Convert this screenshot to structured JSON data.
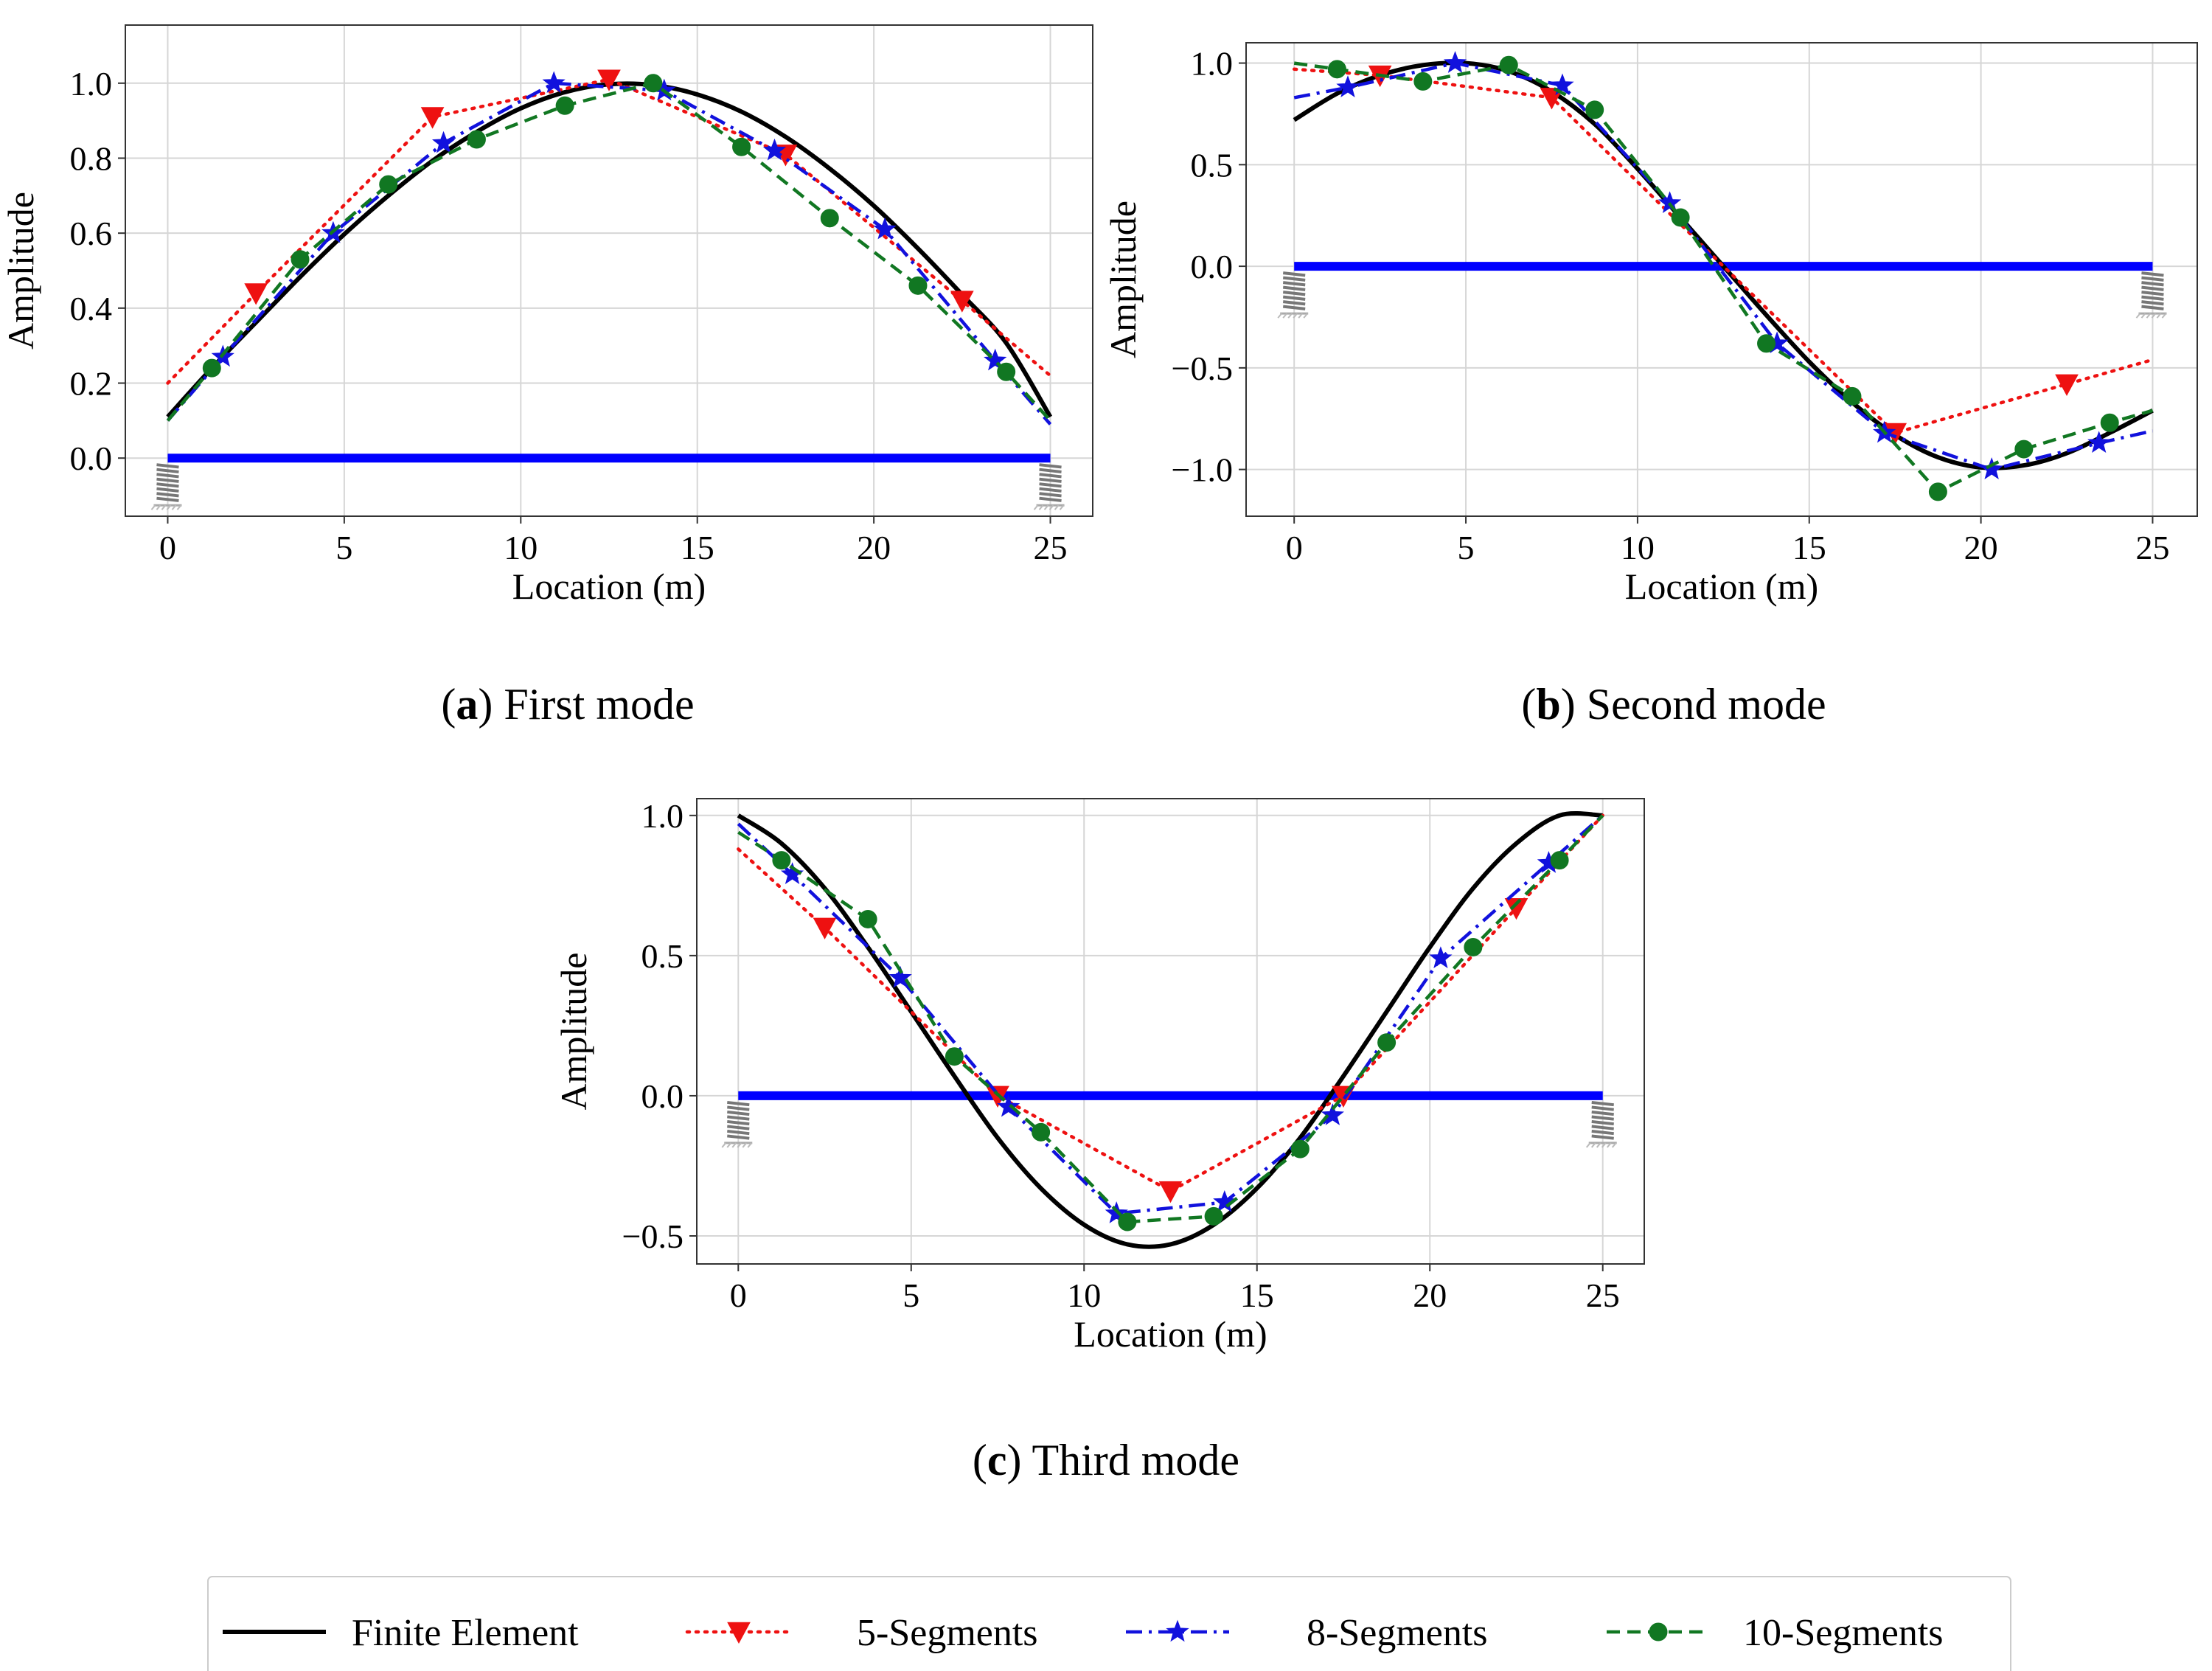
{
  "colors": {
    "fe": "#000000",
    "seg5": "#ee1111",
    "seg8": "#1111dd",
    "seg10": "#117722",
    "beam": "#0000ff",
    "grid": "#d6d6d6",
    "spring": "#777777"
  },
  "legend": {
    "items": [
      {
        "label": "Finite Element",
        "series": "fe"
      },
      {
        "label": "5-Segments",
        "series": "seg5"
      },
      {
        "label": "8-Segments",
        "series": "seg8"
      },
      {
        "label": "10-Segments",
        "series": "seg10"
      }
    ]
  },
  "chart_data": [
    {
      "type": "line",
      "panel": "a",
      "caption_letter": "a",
      "caption_text": "First mode",
      "xlabel": "Location (m)",
      "ylabel": "Amplitude",
      "xlim": [
        -1.2,
        26.2
      ],
      "ylim": [
        -0.155,
        1.155
      ],
      "xticks": [
        0,
        5,
        10,
        15,
        20,
        25
      ],
      "xtick_labels": [
        "0",
        "5",
        "10",
        "15",
        "20",
        "25"
      ],
      "yticks": [
        0.0,
        0.2,
        0.4,
        0.6,
        0.8,
        1.0
      ],
      "ytick_labels": [
        "0.0",
        "0.2",
        "0.4",
        "0.6",
        "0.8",
        "1.0"
      ],
      "grid": true,
      "beam": {
        "x": [
          0,
          25
        ],
        "y": 0
      },
      "series": [
        {
          "key": "fe",
          "name": "Finite Element",
          "x": [
            0,
            1.25,
            2.5,
            3.75,
            5,
            6.25,
            7.5,
            8.75,
            10,
            11.25,
            12.5,
            13.75,
            15,
            16.25,
            17.5,
            18.75,
            20,
            21.25,
            22.5,
            23.75,
            25
          ],
          "y": [
            0.11,
            0.24,
            0.362,
            0.483,
            0.597,
            0.7,
            0.793,
            0.87,
            0.933,
            0.976,
            0.997,
            0.995,
            0.97,
            0.924,
            0.857,
            0.772,
            0.673,
            0.559,
            0.436,
            0.307,
            0.11
          ]
        },
        {
          "key": "seg5",
          "name": "5-Segments",
          "x": [
            0,
            2.5,
            7.5,
            12.5,
            17.5,
            22.5,
            25
          ],
          "y": [
            0.2,
            0.44,
            0.91,
            1.01,
            0.81,
            0.42,
            0.22
          ],
          "markers": [
            false,
            true,
            true,
            true,
            true,
            true,
            false
          ]
        },
        {
          "key": "seg8",
          "name": "8-Segments",
          "x": [
            0,
            1.5625,
            4.6875,
            7.8125,
            10.9375,
            14.0625,
            17.1875,
            20.3125,
            23.4375,
            25
          ],
          "y": [
            0.1,
            0.27,
            0.6,
            0.84,
            1.0,
            0.98,
            0.82,
            0.61,
            0.26,
            0.09
          ],
          "markers": [
            false,
            true,
            true,
            true,
            true,
            true,
            true,
            true,
            true,
            false
          ]
        },
        {
          "key": "seg10",
          "name": "10-Segments",
          "x": [
            0,
            1.25,
            3.75,
            6.25,
            8.75,
            11.25,
            13.75,
            16.25,
            18.75,
            21.25,
            23.75,
            25
          ],
          "y": [
            0.1,
            0.24,
            0.53,
            0.73,
            0.85,
            0.94,
            1.0,
            0.83,
            0.64,
            0.46,
            0.23,
            0.1
          ],
          "markers": [
            false,
            true,
            true,
            true,
            true,
            true,
            true,
            true,
            true,
            true,
            true,
            false
          ]
        }
      ]
    },
    {
      "type": "line",
      "panel": "b",
      "caption_letter": "b",
      "caption_text": "Second mode",
      "xlabel": "Location (m)",
      "ylabel": "Amplitude",
      "xlim": [
        -1.4,
        26.3
      ],
      "ylim": [
        -1.23,
        1.1
      ],
      "xticks": [
        0,
        5,
        10,
        15,
        20,
        25
      ],
      "xtick_labels": [
        "0",
        "5",
        "10",
        "15",
        "20",
        "25"
      ],
      "yticks": [
        -1.0,
        -0.5,
        0.0,
        0.5,
        1.0
      ],
      "ytick_labels": [
        "−1.0",
        "−0.5",
        "0.0",
        "0.5",
        "1.0"
      ],
      "grid": true,
      "beam": {
        "x": [
          0,
          25
        ],
        "y": 0
      },
      "series": [
        {
          "key": "fe",
          "name": "Finite Element",
          "x": [
            0,
            1.25,
            2.5,
            3.75,
            5,
            6.25,
            7.5,
            8.75,
            10,
            11.25,
            12.5,
            13.75,
            15,
            16.25,
            17.5,
            18.75,
            20,
            21.25,
            22.5,
            23.75,
            25
          ],
          "y": [
            0.72,
            0.85,
            0.94,
            0.99,
            1.0,
            0.96,
            0.86,
            0.7,
            0.48,
            0.24,
            0.0,
            -0.24,
            -0.47,
            -0.67,
            -0.83,
            -0.94,
            -0.99,
            -0.98,
            -0.92,
            -0.82,
            -0.71
          ]
        },
        {
          "key": "seg5",
          "name": "5-Segments",
          "x": [
            0,
            2.5,
            7.5,
            12.5,
            17.5,
            22.5,
            25
          ],
          "y": [
            0.97,
            0.94,
            0.83,
            0.0,
            -0.82,
            -0.58,
            -0.46
          ],
          "markers": [
            false,
            true,
            true,
            false,
            true,
            true,
            false
          ]
        },
        {
          "key": "seg8",
          "name": "8-Segments",
          "x": [
            0,
            1.5625,
            4.6875,
            7.8125,
            10.9375,
            14.0625,
            17.1875,
            20.3125,
            23.4375,
            25
          ],
          "y": [
            0.83,
            0.88,
            1.0,
            0.89,
            0.31,
            -0.38,
            -0.82,
            -1.0,
            -0.87,
            -0.81
          ],
          "markers": [
            false,
            true,
            true,
            true,
            true,
            true,
            true,
            true,
            true,
            false
          ]
        },
        {
          "key": "seg10",
          "name": "10-Segments",
          "x": [
            0,
            1.25,
            3.75,
            6.25,
            8.75,
            11.25,
            13.75,
            16.25,
            18.75,
            21.25,
            23.75,
            25
          ],
          "y": [
            1.0,
            0.97,
            0.91,
            0.99,
            0.77,
            0.24,
            -0.38,
            -0.64,
            -1.11,
            -0.9,
            -0.77,
            -0.71
          ],
          "markers": [
            false,
            true,
            true,
            true,
            true,
            true,
            true,
            true,
            true,
            true,
            true,
            false
          ]
        }
      ]
    },
    {
      "type": "line",
      "panel": "c",
      "caption_letter": "c",
      "caption_text": "Third mode",
      "xlabel": "Location (m)",
      "ylabel": "Amplitude",
      "xlim": [
        -1.2,
        26.2
      ],
      "ylim": [
        -0.6,
        1.06
      ],
      "xticks": [
        0,
        5,
        10,
        15,
        20,
        25
      ],
      "xtick_labels": [
        "0",
        "5",
        "10",
        "15",
        "20",
        "25"
      ],
      "yticks": [
        -0.5,
        0.0,
        0.5,
        1.0
      ],
      "ytick_labels": [
        "−0.5",
        "0.0",
        "0.5",
        "1.0"
      ],
      "grid": true,
      "beam": {
        "x": [
          0,
          25
        ],
        "y": 0
      },
      "series": [
        {
          "key": "fe",
          "name": "Finite Element",
          "x": [
            0,
            1.25,
            2.5,
            3.75,
            5,
            6.25,
            7.5,
            8.75,
            10,
            11.25,
            12.5,
            13.75,
            15,
            16.25,
            17.5,
            18.75,
            20,
            21.25,
            22.5,
            23.75,
            25
          ],
          "y": [
            1.0,
            0.9,
            0.74,
            0.53,
            0.3,
            0.07,
            -0.15,
            -0.33,
            -0.46,
            -0.53,
            -0.53,
            -0.46,
            -0.33,
            -0.15,
            0.07,
            0.3,
            0.53,
            0.74,
            0.9,
            1.0,
            1.0
          ],
          "markers": false
        },
        {
          "key": "seg5",
          "name": "5-Segments",
          "x": [
            0,
            2.5,
            7.5,
            12.5,
            17.5,
            22.5,
            25
          ],
          "y": [
            0.88,
            0.6,
            0.0,
            -0.34,
            0.0,
            0.67,
            1.0
          ],
          "markers": [
            false,
            true,
            true,
            true,
            true,
            true,
            false
          ]
        },
        {
          "key": "seg8",
          "name": "8-Segments",
          "x": [
            0,
            1.5625,
            4.6875,
            7.8125,
            10.9375,
            14.0625,
            17.1875,
            20.3125,
            23.4375,
            25
          ],
          "y": [
            0.97,
            0.79,
            0.42,
            -0.04,
            -0.42,
            -0.38,
            -0.07,
            0.49,
            0.83,
            1.0
          ],
          "markers": [
            false,
            true,
            true,
            true,
            true,
            true,
            true,
            true,
            true,
            false
          ]
        },
        {
          "key": "seg10",
          "name": "10-Segments",
          "x": [
            0,
            1.25,
            3.75,
            6.25,
            8.75,
            11.25,
            13.75,
            16.25,
            18.75,
            21.25,
            23.75,
            25
          ],
          "y": [
            0.94,
            0.84,
            0.63,
            0.14,
            -0.13,
            -0.45,
            -0.43,
            -0.19,
            0.19,
            0.53,
            0.84,
            1.0
          ],
          "markers": [
            false,
            true,
            true,
            true,
            true,
            true,
            true,
            true,
            true,
            true,
            true,
            false
          ]
        }
      ]
    }
  ]
}
